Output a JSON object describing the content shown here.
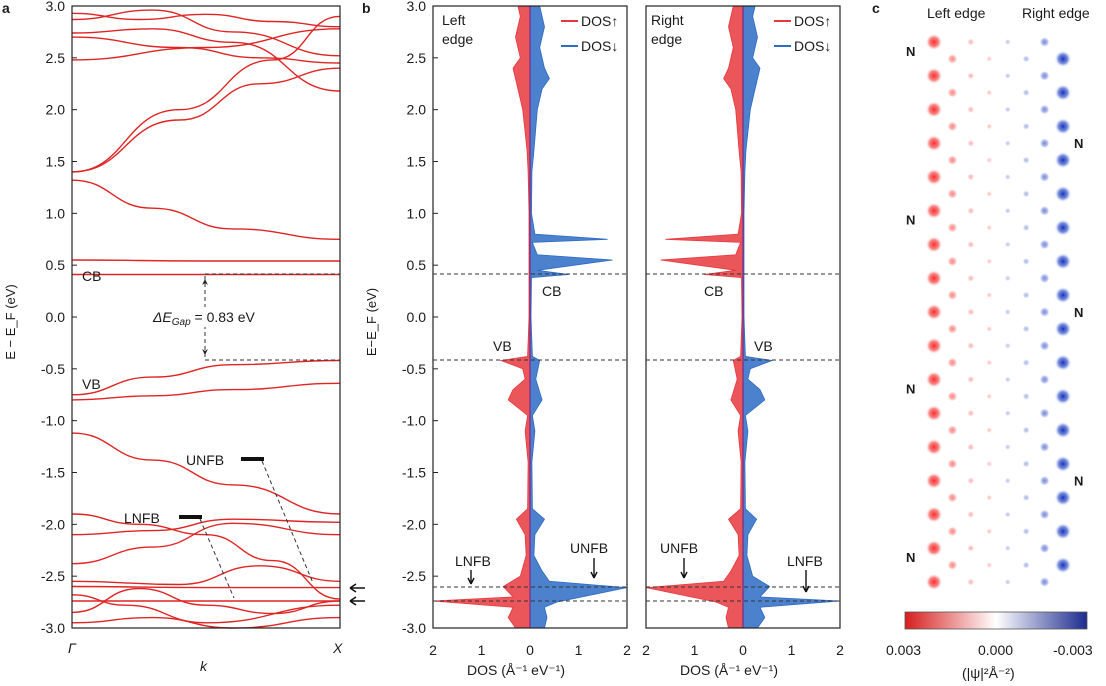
{
  "colors": {
    "band": "#e02424",
    "spin_up": "#e8383d",
    "spin_down": "#2d6bc4",
    "text": "#1a1a1a"
  },
  "panels": {
    "a": "a",
    "b": "b",
    "c": "c"
  },
  "chart_data": [
    {
      "type": "line",
      "id": "band-structure",
      "ylabel": "E − E_F (eV)",
      "xlabel": "k",
      "x_ticks": [
        "Γ",
        "X"
      ],
      "ylim": [
        -3.0,
        3.0
      ],
      "y_ticks": [
        3.0,
        2.5,
        2.0,
        1.5,
        1.0,
        0.5,
        0.0,
        -0.5,
        -1.0,
        -1.5,
        -2.0,
        -2.5,
        -3.0
      ],
      "y_tick_labels": [
        "3.0",
        "2.5",
        "2.0",
        "1.5",
        "1.0",
        "0.5",
        "0.0",
        "-0.5",
        "-1.0",
        "-1.5",
        "-2.0",
        "-2.5",
        "-3.0"
      ],
      "annotations": {
        "cb": "CB",
        "vb": "VB",
        "gap_prefix": "ΔE",
        "gap_sub": "Gap",
        "gap_value": " = 0.83 eV",
        "unfb": "UNFB",
        "lnfb": "LNFB"
      },
      "levels": {
        "cb": 0.41,
        "vb": -0.42,
        "unfb": -2.61,
        "lnfb": -2.74
      },
      "bands": [
        [
          [
            0,
            2.93
          ],
          [
            0.25,
            2.87
          ],
          [
            0.5,
            2.92
          ],
          [
            0.75,
            2.85
          ],
          [
            1,
            2.8
          ]
        ],
        [
          [
            0,
            2.87
          ],
          [
            0.3,
            2.96
          ],
          [
            0.6,
            2.75
          ],
          [
            1,
            2.52
          ]
        ],
        [
          [
            0,
            2.7
          ],
          [
            0.4,
            2.6
          ],
          [
            0.7,
            2.5
          ],
          [
            1,
            2.45
          ]
        ],
        [
          [
            0,
            2.74
          ],
          [
            0.3,
            2.78
          ],
          [
            0.6,
            2.65
          ],
          [
            1,
            2.18
          ]
        ],
        [
          [
            0,
            2.48
          ],
          [
            0.5,
            2.6
          ],
          [
            1,
            2.78
          ]
        ],
        [
          [
            0,
            1.4
          ],
          [
            0.4,
            2.0
          ],
          [
            0.75,
            2.48
          ],
          [
            1,
            2.9
          ]
        ],
        [
          [
            0,
            1.4
          ],
          [
            0.4,
            1.9
          ],
          [
            0.7,
            2.25
          ],
          [
            1,
            2.4
          ]
        ],
        [
          [
            0,
            1.32
          ],
          [
            0.3,
            1.05
          ],
          [
            0.6,
            0.85
          ],
          [
            1,
            0.75
          ]
        ],
        [
          [
            0,
            0.55
          ],
          [
            0.5,
            0.54
          ],
          [
            1,
            0.54
          ]
        ],
        [
          [
            0,
            0.41
          ],
          [
            0.5,
            0.41
          ],
          [
            1,
            0.41
          ]
        ],
        [
          [
            0,
            -0.75
          ],
          [
            0.3,
            -0.58
          ],
          [
            0.6,
            -0.46
          ],
          [
            1,
            -0.42
          ]
        ],
        [
          [
            0,
            -0.8
          ],
          [
            0.3,
            -0.76
          ],
          [
            0.6,
            -0.7
          ],
          [
            1,
            -0.64
          ]
        ],
        [
          [
            0,
            -1.12
          ],
          [
            0.3,
            -1.38
          ],
          [
            0.6,
            -1.62
          ],
          [
            1,
            -1.9
          ]
        ],
        [
          [
            0,
            -1.9
          ],
          [
            0.25,
            -2.0
          ],
          [
            0.5,
            -2.1
          ],
          [
            0.75,
            -2.35
          ],
          [
            1,
            -2.72
          ]
        ],
        [
          [
            0,
            -2.1
          ],
          [
            0.3,
            -2.06
          ],
          [
            0.6,
            -1.95
          ],
          [
            1,
            -1.98
          ]
        ],
        [
          [
            0,
            -2.38
          ],
          [
            0.3,
            -2.22
          ],
          [
            0.6,
            -1.99
          ],
          [
            1,
            -2.1
          ]
        ],
        [
          [
            0,
            -2.55
          ],
          [
            0.4,
            -2.58
          ],
          [
            0.7,
            -2.4
          ],
          [
            1,
            -2.55
          ]
        ],
        [
          [
            0,
            -2.6
          ],
          [
            0.5,
            -2.61
          ],
          [
            1,
            -2.61
          ]
        ],
        [
          [
            0,
            -2.74
          ],
          [
            0.5,
            -2.74
          ],
          [
            1,
            -2.74
          ]
        ],
        [
          [
            0,
            -2.85
          ],
          [
            0.25,
            -2.62
          ],
          [
            0.5,
            -2.78
          ],
          [
            0.75,
            -2.86
          ],
          [
            1,
            -2.74
          ]
        ],
        [
          [
            0,
            -2.68
          ],
          [
            0.2,
            -2.78
          ],
          [
            0.5,
            -2.95
          ],
          [
            1,
            -2.78
          ]
        ],
        [
          [
            0,
            -2.95
          ],
          [
            0.3,
            -2.9
          ],
          [
            0.6,
            -3.0
          ],
          [
            1,
            -2.9
          ]
        ]
      ]
    },
    {
      "type": "area",
      "id": "dos-left",
      "title": "Left edge",
      "xlabel": "DOS (Å⁻¹ eV⁻¹)",
      "ylabel": "E−E_F (eV)",
      "xlim": [
        -2,
        2
      ],
      "x_ticks": [
        2,
        1,
        0,
        1,
        2
      ],
      "ylim": [
        -3.0,
        3.0
      ],
      "legend": [
        "DOS↑",
        "DOS↓"
      ],
      "legend_position": "top-right",
      "annotations": {
        "cb": "CB",
        "vb": "VB",
        "lnfb": "LNFB",
        "unfb": "UNFB"
      },
      "spin_up": [
        [
          -3.0,
          0.3
        ],
        [
          -2.9,
          0.45
        ],
        [
          -2.8,
          0.35
        ],
        [
          -2.74,
          2.0
        ],
        [
          -2.7,
          0.35
        ],
        [
          -2.6,
          0.55
        ],
        [
          -2.5,
          0.2
        ],
        [
          -2.3,
          0.08
        ],
        [
          -2.1,
          0.1
        ],
        [
          -1.95,
          0.28
        ],
        [
          -1.85,
          0.05
        ],
        [
          -1.4,
          0.04
        ],
        [
          -1.1,
          0.1
        ],
        [
          -0.95,
          0.05
        ],
        [
          -0.8,
          0.45
        ],
        [
          -0.7,
          0.35
        ],
        [
          -0.6,
          0.1
        ],
        [
          -0.5,
          0.15
        ],
        [
          -0.42,
          0.6
        ],
        [
          -0.38,
          0.05
        ],
        [
          0.0,
          0.02
        ],
        [
          0.4,
          0.02
        ],
        [
          0.8,
          0.02
        ],
        [
          1.0,
          0.02
        ],
        [
          1.4,
          0.04
        ],
        [
          1.6,
          0.06
        ],
        [
          2.0,
          0.15
        ],
        [
          2.2,
          0.25
        ],
        [
          2.4,
          0.35
        ],
        [
          2.5,
          0.2
        ],
        [
          2.7,
          0.3
        ],
        [
          2.9,
          0.2
        ],
        [
          3.0,
          0.25
        ]
      ],
      "spin_down": [
        [
          -3.0,
          0.3
        ],
        [
          -2.9,
          0.35
        ],
        [
          -2.8,
          0.3
        ],
        [
          -2.75,
          0.55
        ],
        [
          -2.61,
          2.0
        ],
        [
          -2.55,
          0.4
        ],
        [
          -2.45,
          0.25
        ],
        [
          -2.3,
          0.08
        ],
        [
          -2.1,
          0.1
        ],
        [
          -1.95,
          0.3
        ],
        [
          -1.85,
          0.05
        ],
        [
          -1.4,
          0.04
        ],
        [
          -1.1,
          0.1
        ],
        [
          -0.95,
          0.05
        ],
        [
          -0.8,
          0.25
        ],
        [
          -0.6,
          0.12
        ],
        [
          -0.42,
          0.2
        ],
        [
          -0.38,
          0.05
        ],
        [
          0.0,
          0.02
        ],
        [
          0.38,
          0.03
        ],
        [
          0.41,
          0.8
        ],
        [
          0.45,
          0.15
        ],
        [
          0.55,
          1.7
        ],
        [
          0.6,
          0.15
        ],
        [
          0.72,
          0.05
        ],
        [
          0.75,
          1.6
        ],
        [
          0.8,
          0.1
        ],
        [
          1.0,
          0.03
        ],
        [
          1.4,
          0.04
        ],
        [
          1.6,
          0.08
        ],
        [
          2.0,
          0.15
        ],
        [
          2.2,
          0.25
        ],
        [
          2.3,
          0.4
        ],
        [
          2.4,
          0.3
        ],
        [
          2.6,
          0.2
        ],
        [
          2.8,
          0.3
        ],
        [
          3.0,
          0.2
        ]
      ]
    },
    {
      "type": "area",
      "id": "dos-right",
      "title": "Right edge",
      "xlabel": "DOS (Å⁻¹ eV⁻¹)",
      "xlim": [
        -2,
        2
      ],
      "x_ticks": [
        2,
        1,
        0,
        1,
        2
      ],
      "ylim": [
        -3.0,
        3.0
      ],
      "legend": [
        "DOS↑",
        "DOS↓"
      ],
      "legend_position": "top-right",
      "annotations": {
        "cb": "CB",
        "vb": "VB",
        "unfb": "UNFB",
        "lnfb": "LNFB"
      },
      "spin_up": [
        [
          -3.0,
          0.3
        ],
        [
          -2.9,
          0.35
        ],
        [
          -2.8,
          0.3
        ],
        [
          -2.75,
          0.55
        ],
        [
          -2.61,
          2.0
        ],
        [
          -2.55,
          0.4
        ],
        [
          -2.45,
          0.25
        ],
        [
          -2.3,
          0.08
        ],
        [
          -2.1,
          0.1
        ],
        [
          -1.95,
          0.3
        ],
        [
          -1.85,
          0.05
        ],
        [
          -1.4,
          0.04
        ],
        [
          -1.1,
          0.1
        ],
        [
          -0.95,
          0.05
        ],
        [
          -0.8,
          0.25
        ],
        [
          -0.6,
          0.12
        ],
        [
          -0.42,
          0.2
        ],
        [
          -0.38,
          0.05
        ],
        [
          0.0,
          0.02
        ],
        [
          0.38,
          0.03
        ],
        [
          0.41,
          0.8
        ],
        [
          0.45,
          0.15
        ],
        [
          0.55,
          1.7
        ],
        [
          0.6,
          0.15
        ],
        [
          0.72,
          0.05
        ],
        [
          0.75,
          1.6
        ],
        [
          0.8,
          0.1
        ],
        [
          1.0,
          0.03
        ],
        [
          1.4,
          0.04
        ],
        [
          1.6,
          0.08
        ],
        [
          2.0,
          0.15
        ],
        [
          2.2,
          0.25
        ],
        [
          2.3,
          0.4
        ],
        [
          2.4,
          0.3
        ],
        [
          2.6,
          0.2
        ],
        [
          2.8,
          0.3
        ],
        [
          3.0,
          0.2
        ]
      ],
      "spin_down": [
        [
          -3.0,
          0.3
        ],
        [
          -2.9,
          0.45
        ],
        [
          -2.8,
          0.35
        ],
        [
          -2.74,
          2.0
        ],
        [
          -2.7,
          0.35
        ],
        [
          -2.6,
          0.55
        ],
        [
          -2.5,
          0.2
        ],
        [
          -2.3,
          0.08
        ],
        [
          -2.1,
          0.1
        ],
        [
          -1.95,
          0.28
        ],
        [
          -1.85,
          0.05
        ],
        [
          -1.4,
          0.04
        ],
        [
          -1.1,
          0.1
        ],
        [
          -0.95,
          0.05
        ],
        [
          -0.8,
          0.45
        ],
        [
          -0.7,
          0.35
        ],
        [
          -0.6,
          0.1
        ],
        [
          -0.5,
          0.15
        ],
        [
          -0.42,
          0.6
        ],
        [
          -0.38,
          0.05
        ],
        [
          0.0,
          0.02
        ],
        [
          0.4,
          0.02
        ],
        [
          0.8,
          0.02
        ],
        [
          1.0,
          0.02
        ],
        [
          1.4,
          0.04
        ],
        [
          1.6,
          0.06
        ],
        [
          2.0,
          0.15
        ],
        [
          2.2,
          0.25
        ],
        [
          2.4,
          0.35
        ],
        [
          2.5,
          0.2
        ],
        [
          2.7,
          0.3
        ],
        [
          2.9,
          0.2
        ],
        [
          3.0,
          0.25
        ]
      ]
    },
    {
      "type": "heatmap",
      "id": "edge-density",
      "labels": {
        "left": "Left edge",
        "right": "Right edge",
        "n": "N"
      },
      "colorbar": {
        "min_label": "0.003",
        "mid_label": "0.000",
        "max_label": "-0.003",
        "label": "(|ψ|²Å⁻²)",
        "low_color": "#d71e1e",
        "mid_color": "#ffffff",
        "high_color": "#1c2b8f"
      },
      "columns": [
        {
          "value": 0.0028,
          "offset": 0
        },
        {
          "value": 0.0012,
          "offset": 0.5
        },
        {
          "value": 0.0004,
          "offset": 0
        },
        {
          "value": 0.0001,
          "offset": 0.5
        },
        {
          "value": -0.0001,
          "offset": 0
        },
        {
          "value": -0.0004,
          "offset": 0.5
        },
        {
          "value": -0.0012,
          "offset": 0
        },
        {
          "value": -0.0028,
          "offset": 0.5
        }
      ],
      "rows": 17,
      "n_markers_left_rows": [
        1,
        6,
        11,
        16
      ],
      "n_markers_right_rows": [
        3.5,
        8.5,
        13.5
      ]
    }
  ]
}
